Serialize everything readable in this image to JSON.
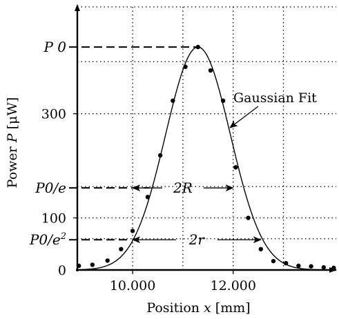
{
  "chart_data": {
    "type": "scatter",
    "xlabel": "Position x [mm]",
    "ylabel": "Power P [μW]",
    "xlim": [
      8.9,
      14.05
    ],
    "ylim": [
      0,
      505
    ],
    "grid": true,
    "x_ticks": [
      {
        "value": 10.0,
        "label": "10.000"
      },
      {
        "value": 12.0,
        "label": "12.000"
      }
    ],
    "x_grid": [
      10.0,
      11.0,
      12.0,
      13.0
    ],
    "y_ticks": [
      {
        "value": 0,
        "label": "0"
      },
      {
        "value": 100,
        "label": "100"
      },
      {
        "value": 300,
        "label": "300"
      }
    ],
    "y_grid": [
      60,
      160,
      400
    ],
    "reference_levels": [
      {
        "name": "P0",
        "value": 428,
        "label": "P 0"
      },
      {
        "name": "P0/e",
        "value": 157.5,
        "label": "P0/e"
      },
      {
        "name": "P0/e2",
        "value": 58,
        "label": "P0/e²"
      }
    ],
    "gaussian_fit": {
      "label": "Gaussian Fit",
      "amplitude": 428,
      "center": 11.3,
      "width_2r": 2.58,
      "offset": 0
    },
    "widths": [
      {
        "label": "2R",
        "level": 157.5,
        "x_start": 10.0,
        "x_end": 12.0
      },
      {
        "label": "2r",
        "level": 58,
        "x_start": 10.0,
        "x_end": 12.55
      }
    ],
    "points": [
      {
        "x": 8.93,
        "y": 8
      },
      {
        "x": 9.2,
        "y": 10
      },
      {
        "x": 9.5,
        "y": 18
      },
      {
        "x": 9.77,
        "y": 40
      },
      {
        "x": 10.0,
        "y": 75
      },
      {
        "x": 10.3,
        "y": 140
      },
      {
        "x": 10.55,
        "y": 220
      },
      {
        "x": 10.8,
        "y": 325
      },
      {
        "x": 11.05,
        "y": 390
      },
      {
        "x": 11.3,
        "y": 428
      },
      {
        "x": 11.55,
        "y": 383
      },
      {
        "x": 11.8,
        "y": 325
      },
      {
        "x": 12.05,
        "y": 197
      },
      {
        "x": 12.3,
        "y": 100
      },
      {
        "x": 12.55,
        "y": 40
      },
      {
        "x": 12.8,
        "y": 17
      },
      {
        "x": 13.05,
        "y": 13
      },
      {
        "x": 13.3,
        "y": 8
      },
      {
        "x": 13.55,
        "y": 7
      },
      {
        "x": 13.8,
        "y": 5
      },
      {
        "x": 14.0,
        "y": 4
      }
    ]
  }
}
